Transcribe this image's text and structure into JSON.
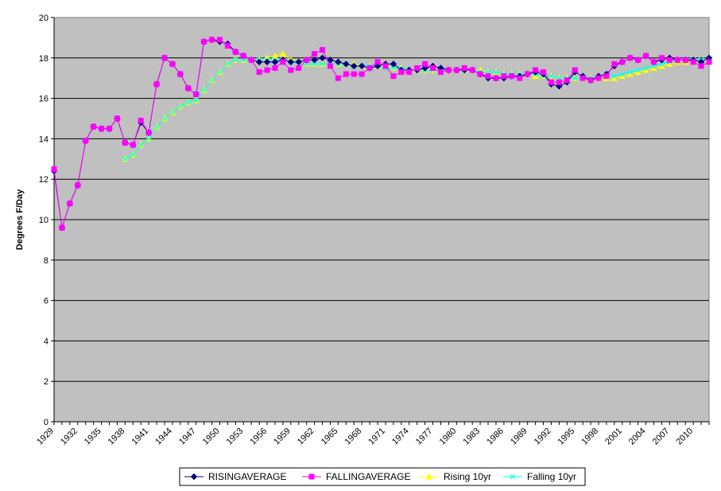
{
  "chart_data": {
    "type": "line",
    "ylabel": "Degrees F/Day",
    "ylim": [
      0,
      20
    ],
    "yticks": [
      0,
      2,
      4,
      6,
      8,
      10,
      12,
      14,
      16,
      18,
      20
    ],
    "x_range": [
      1929,
      2012
    ],
    "xticks": [
      1929,
      1932,
      1935,
      1938,
      1941,
      1944,
      1947,
      1950,
      1953,
      1956,
      1959,
      1962,
      1965,
      1968,
      1971,
      1974,
      1977,
      1980,
      1983,
      1986,
      1989,
      1992,
      1995,
      1998,
      2001,
      2004,
      2007,
      2010
    ],
    "grid": "horizontal major gridlines",
    "background": "#c0c0c0",
    "legend_position": "bottom",
    "series": [
      {
        "name": "RISINGAVERAGE",
        "color": "#000080",
        "marker": "diamond",
        "x": [
          1929,
          1930,
          1931,
          1932,
          1933,
          1934,
          1935,
          1936,
          1937,
          1938,
          1939,
          1940,
          1941,
          1942,
          1943,
          1944,
          1945,
          1946,
          1947,
          1948,
          1949,
          1950,
          1951,
          1952,
          1953,
          1954,
          1955,
          1956,
          1957,
          1958,
          1959,
          1960,
          1961,
          1962,
          1963,
          1964,
          1965,
          1966,
          1967,
          1968,
          1969,
          1970,
          1971,
          1972,
          1973,
          1974,
          1975,
          1976,
          1977,
          1978,
          1979,
          1980,
          1981,
          1982,
          1983,
          1984,
          1985,
          1986,
          1987,
          1988,
          1989,
          1990,
          1991,
          1992,
          1993,
          1994,
          1995,
          1996,
          1997,
          1998,
          1999,
          2000,
          2001,
          2002,
          2003,
          2004,
          2005,
          2006,
          2007,
          2008,
          2009,
          2010,
          2011,
          2012
        ],
        "values": [
          12.4,
          9.6,
          10.8,
          11.7,
          13.9,
          14.6,
          14.5,
          14.5,
          15.0,
          13.8,
          13.7,
          14.8,
          14.3,
          16.7,
          18.0,
          17.7,
          17.2,
          16.5,
          16.2,
          18.8,
          18.9,
          18.8,
          18.7,
          18.3,
          18.1,
          17.9,
          17.8,
          17.8,
          17.8,
          17.9,
          17.8,
          17.8,
          17.9,
          17.9,
          18.0,
          17.9,
          17.8,
          17.7,
          17.6,
          17.6,
          17.5,
          17.6,
          17.7,
          17.7,
          17.4,
          17.4,
          17.4,
          17.5,
          17.6,
          17.5,
          17.4,
          17.4,
          17.4,
          17.4,
          17.2,
          17.0,
          17.0,
          17.0,
          17.1,
          17.1,
          17.2,
          17.3,
          17.2,
          16.7,
          16.6,
          16.8,
          17.3,
          17.1,
          16.9,
          17.1,
          17.2,
          17.6,
          17.8,
          18.0,
          17.9,
          18.1,
          17.8,
          17.9,
          18.0,
          17.9,
          17.9,
          17.9,
          17.8,
          18.0
        ]
      },
      {
        "name": "FALLINGAVERAGE",
        "color": "#ff00ff",
        "marker": "square",
        "x": [
          1929,
          1930,
          1931,
          1932,
          1933,
          1934,
          1935,
          1936,
          1937,
          1938,
          1939,
          1940,
          1941,
          1942,
          1943,
          1944,
          1945,
          1946,
          1947,
          1948,
          1949,
          1950,
          1951,
          1952,
          1953,
          1954,
          1955,
          1956,
          1957,
          1958,
          1959,
          1960,
          1961,
          1962,
          1963,
          1964,
          1965,
          1966,
          1967,
          1968,
          1969,
          1970,
          1971,
          1972,
          1973,
          1974,
          1975,
          1976,
          1977,
          1978,
          1979,
          1980,
          1981,
          1982,
          1983,
          1984,
          1985,
          1986,
          1987,
          1988,
          1989,
          1990,
          1991,
          1992,
          1993,
          1994,
          1995,
          1996,
          1997,
          1998,
          1999,
          2000,
          2001,
          2002,
          2003,
          2004,
          2005,
          2006,
          2007,
          2008,
          2009,
          2010,
          2011,
          2012
        ],
        "values": [
          12.5,
          9.6,
          10.8,
          11.7,
          13.9,
          14.6,
          14.5,
          14.5,
          15.0,
          13.8,
          13.7,
          14.9,
          14.3,
          16.7,
          18.0,
          17.7,
          17.2,
          16.5,
          16.2,
          18.8,
          18.9,
          18.9,
          18.6,
          18.3,
          18.1,
          17.9,
          17.3,
          17.4,
          17.5,
          17.8,
          17.4,
          17.5,
          17.9,
          18.2,
          18.4,
          17.6,
          17.0,
          17.2,
          17.2,
          17.2,
          17.5,
          17.8,
          17.6,
          17.1,
          17.3,
          17.3,
          17.5,
          17.7,
          17.5,
          17.3,
          17.4,
          17.4,
          17.5,
          17.4,
          17.2,
          17.1,
          17.0,
          17.1,
          17.1,
          17.0,
          17.2,
          17.4,
          17.3,
          16.8,
          16.8,
          16.9,
          17.4,
          17.0,
          16.9,
          17.0,
          17.1,
          17.7,
          17.8,
          18.0,
          17.9,
          18.1,
          17.8,
          18.0,
          17.9,
          17.9,
          17.9,
          17.8,
          17.6,
          17.8
        ]
      },
      {
        "name": "Rising 10yr",
        "color": "#ffff00",
        "marker": "triangle",
        "x": [
          1938,
          1939,
          1940,
          1941,
          1942,
          1943,
          1944,
          1945,
          1946,
          1947,
          1948,
          1949,
          1950,
          1951,
          1952,
          1953,
          1954,
          1955,
          1956,
          1957,
          1958,
          1959,
          1960,
          1961,
          1962,
          1963,
          1964,
          1965,
          1966,
          1967,
          1968,
          1969,
          1970,
          1971,
          1972,
          1973,
          1974,
          1975,
          1976,
          1977,
          1978,
          1979,
          1980,
          1981,
          1982,
          1983,
          1984,
          1985,
          1986,
          1987,
          1988,
          1989,
          1990,
          1991,
          1992,
          1993,
          1994,
          1995,
          1996,
          1997,
          1998,
          1999,
          2000,
          2001,
          2002,
          2003,
          2004,
          2005,
          2006,
          2007,
          2008,
          2009,
          2010,
          2011,
          2012
        ],
        "values": [
          13.0,
          13.2,
          13.7,
          14.0,
          14.6,
          15.0,
          15.3,
          15.6,
          15.8,
          15.9,
          16.4,
          16.9,
          17.3,
          17.7,
          17.9,
          17.9,
          17.9,
          17.9,
          18.0,
          18.1,
          18.2,
          17.9,
          17.8,
          17.7,
          17.7,
          17.7,
          17.7,
          17.7,
          17.7,
          17.7,
          17.6,
          17.6,
          17.6,
          17.6,
          17.5,
          17.5,
          17.4,
          17.4,
          17.4,
          17.4,
          17.4,
          17.4,
          17.4,
          17.4,
          17.4,
          17.4,
          17.3,
          17.3,
          17.2,
          17.2,
          17.2,
          17.2,
          17.1,
          17.1,
          17.1,
          17.0,
          17.0,
          17.0,
          17.0,
          17.0,
          17.0,
          17.0,
          17.0,
          17.1,
          17.2,
          17.3,
          17.4,
          17.5,
          17.6,
          17.7,
          17.8,
          17.8,
          17.8,
          17.8,
          17.9
        ]
      },
      {
        "name": "Falling 10yr",
        "color": "#00ffff",
        "marker": "x",
        "x": [
          1938,
          1939,
          1940,
          1941,
          1942,
          1943,
          1944,
          1945,
          1946,
          1947,
          1948,
          1949,
          1950,
          1951,
          1952,
          1953,
          1954,
          1955,
          1956,
          1957,
          1958,
          1959,
          1960,
          1961,
          1962,
          1963,
          1964,
          1965,
          1966,
          1967,
          1968,
          1969,
          1970,
          1971,
          1972,
          1973,
          1974,
          1975,
          1976,
          1977,
          1978,
          1979,
          1980,
          1981,
          1982,
          1983,
          1984,
          1985,
          1986,
          1987,
          1988,
          1989,
          1990,
          1991,
          1992,
          1993,
          1994,
          1995,
          1996,
          1997,
          1998,
          1999,
          2000,
          2001,
          2002,
          2003,
          2004,
          2005,
          2006,
          2007,
          2008,
          2009,
          2010,
          2011,
          2012
        ],
        "values": [
          13.0,
          13.2,
          13.7,
          14.0,
          14.6,
          15.0,
          15.3,
          15.6,
          15.8,
          15.9,
          16.4,
          16.9,
          17.3,
          17.7,
          17.9,
          17.9,
          17.9,
          17.9,
          17.9,
          17.9,
          17.9,
          17.8,
          17.7,
          17.7,
          17.7,
          17.7,
          17.7,
          17.7,
          17.7,
          17.6,
          17.6,
          17.6,
          17.6,
          17.5,
          17.5,
          17.5,
          17.4,
          17.4,
          17.4,
          17.4,
          17.4,
          17.4,
          17.4,
          17.4,
          17.4,
          17.3,
          17.3,
          17.3,
          17.2,
          17.2,
          17.2,
          17.2,
          17.2,
          17.1,
          17.1,
          17.0,
          17.0,
          17.0,
          17.0,
          17.0,
          17.0,
          17.1,
          17.1,
          17.2,
          17.3,
          17.4,
          17.5,
          17.6,
          17.7,
          17.8,
          17.9,
          17.9,
          17.9,
          17.9,
          17.9
        ]
      }
    ]
  }
}
